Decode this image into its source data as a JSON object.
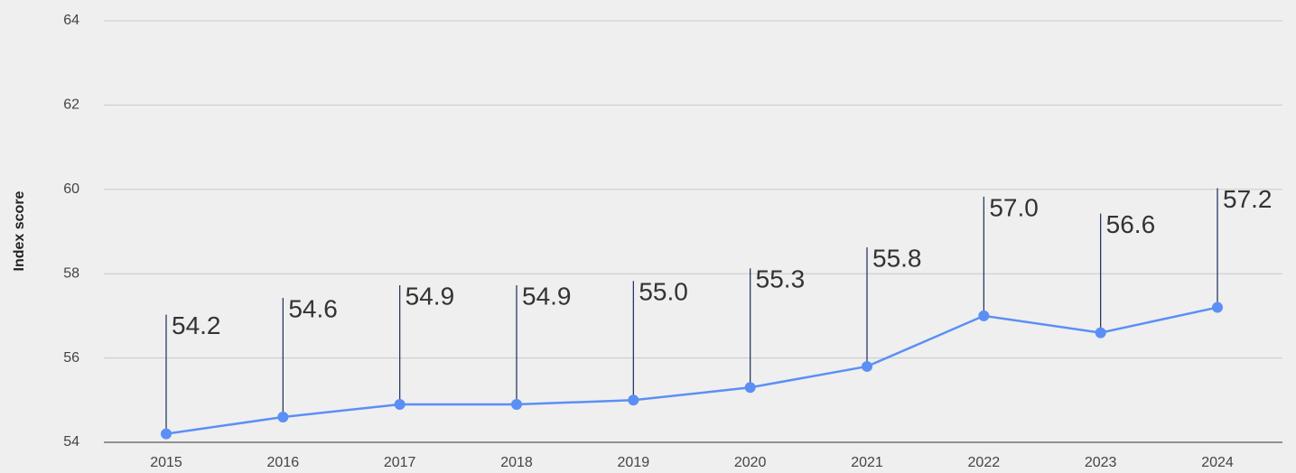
{
  "chart_data": {
    "type": "line",
    "y_label": "Index score",
    "categories": [
      "2015",
      "2016",
      "2017",
      "2018",
      "2019",
      "2020",
      "2021",
      "2022",
      "2023",
      "2024"
    ],
    "values": [
      54.2,
      54.6,
      54.9,
      54.9,
      55.0,
      55.3,
      55.8,
      57.0,
      56.6,
      57.2
    ],
    "value_labels": [
      "54.2",
      "54.6",
      "54.9",
      "54.9",
      "55.0",
      "55.3",
      "55.8",
      "57.0",
      "56.6",
      "57.2"
    ],
    "color": "#5b8ff5",
    "ylim": [
      54,
      64
    ],
    "yticks": [
      54,
      56,
      58,
      60,
      62,
      64
    ],
    "grid": true
  }
}
